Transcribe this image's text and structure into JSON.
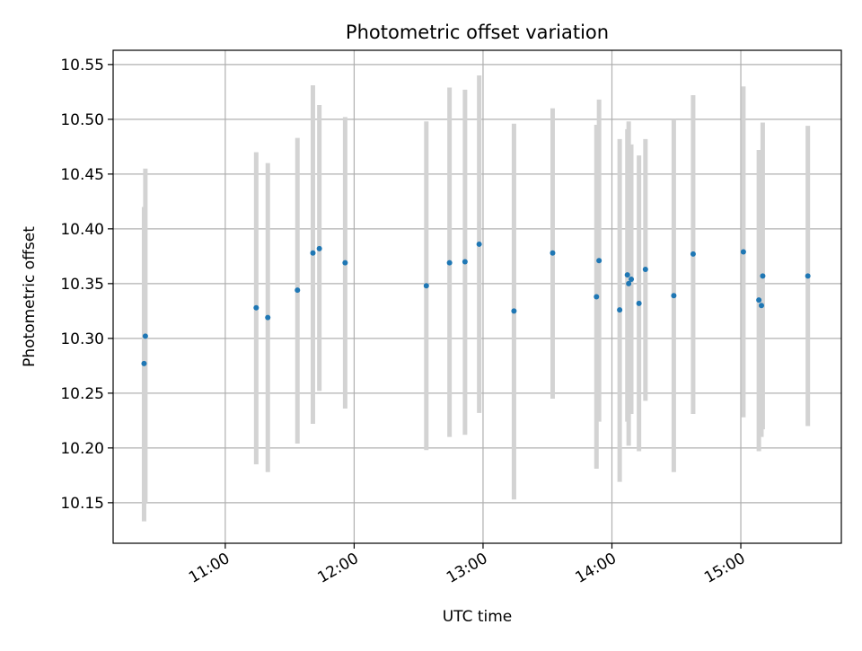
{
  "chart_data": {
    "type": "scatter",
    "title": "Photometric offset variation",
    "xlabel": "UTC time",
    "ylabel": "Photometric offset",
    "x_unit": "hours UTC",
    "xlim": [
      10.13,
      15.78
    ],
    "ylim": [
      10.113,
      10.563
    ],
    "xticks": [
      {
        "value": 11,
        "label": "11:00"
      },
      {
        "value": 12,
        "label": "12:00"
      },
      {
        "value": 13,
        "label": "13:00"
      },
      {
        "value": 14,
        "label": "14:00"
      },
      {
        "value": 15,
        "label": "15:00"
      }
    ],
    "yticks": [
      {
        "value": 10.15,
        "label": "10.15"
      },
      {
        "value": 10.2,
        "label": "10.20"
      },
      {
        "value": 10.25,
        "label": "10.25"
      },
      {
        "value": 10.3,
        "label": "10.30"
      },
      {
        "value": 10.35,
        "label": "10.35"
      },
      {
        "value": 10.4,
        "label": "10.40"
      },
      {
        "value": 10.45,
        "label": "10.45"
      },
      {
        "value": 10.5,
        "label": "10.50"
      },
      {
        "value": 10.55,
        "label": "10.55"
      }
    ],
    "grid": true,
    "colors": {
      "point": "#1f77b4",
      "errorbar": "#d3d3d3",
      "grid": "#b0b0b0",
      "axes": "#000000"
    },
    "series": [
      {
        "points": [
          {
            "x": 10.38,
            "y": 10.302,
            "lo": 10.15,
            "hi": 10.455
          },
          {
            "x": 10.37,
            "y": 10.277,
            "lo": 10.133,
            "hi": 10.42
          },
          {
            "x": 11.24,
            "y": 10.328,
            "lo": 10.185,
            "hi": 10.47
          },
          {
            "x": 11.33,
            "y": 10.319,
            "lo": 10.178,
            "hi": 10.46
          },
          {
            "x": 11.56,
            "y": 10.344,
            "lo": 10.204,
            "hi": 10.483
          },
          {
            "x": 11.68,
            "y": 10.378,
            "lo": 10.222,
            "hi": 10.531
          },
          {
            "x": 11.73,
            "y": 10.382,
            "lo": 10.252,
            "hi": 10.513
          },
          {
            "x": 11.93,
            "y": 10.369,
            "lo": 10.236,
            "hi": 10.502
          },
          {
            "x": 12.56,
            "y": 10.348,
            "lo": 10.198,
            "hi": 10.498
          },
          {
            "x": 12.74,
            "y": 10.369,
            "lo": 10.21,
            "hi": 10.529
          },
          {
            "x": 12.86,
            "y": 10.37,
            "lo": 10.212,
            "hi": 10.527
          },
          {
            "x": 12.97,
            "y": 10.386,
            "lo": 10.232,
            "hi": 10.54
          },
          {
            "x": 13.24,
            "y": 10.325,
            "lo": 10.153,
            "hi": 10.496
          },
          {
            "x": 13.54,
            "y": 10.378,
            "lo": 10.245,
            "hi": 10.51
          },
          {
            "x": 13.88,
            "y": 10.338,
            "lo": 10.181,
            "hi": 10.495
          },
          {
            "x": 13.9,
            "y": 10.371,
            "lo": 10.224,
            "hi": 10.518
          },
          {
            "x": 14.06,
            "y": 10.326,
            "lo": 10.169,
            "hi": 10.482
          },
          {
            "x": 14.12,
            "y": 10.358,
            "lo": 10.224,
            "hi": 10.491
          },
          {
            "x": 14.13,
            "y": 10.35,
            "lo": 10.202,
            "hi": 10.498
          },
          {
            "x": 14.15,
            "y": 10.354,
            "lo": 10.231,
            "hi": 10.477
          },
          {
            "x": 14.21,
            "y": 10.332,
            "lo": 10.197,
            "hi": 10.467
          },
          {
            "x": 14.26,
            "y": 10.363,
            "lo": 10.243,
            "hi": 10.482
          },
          {
            "x": 14.48,
            "y": 10.339,
            "lo": 10.178,
            "hi": 10.5
          },
          {
            "x": 14.63,
            "y": 10.377,
            "lo": 10.231,
            "hi": 10.522
          },
          {
            "x": 15.02,
            "y": 10.379,
            "lo": 10.228,
            "hi": 10.53
          },
          {
            "x": 15.14,
            "y": 10.335,
            "lo": 10.197,
            "hi": 10.472
          },
          {
            "x": 15.16,
            "y": 10.33,
            "lo": 10.21,
            "hi": 10.45
          },
          {
            "x": 15.17,
            "y": 10.357,
            "lo": 10.217,
            "hi": 10.497
          },
          {
            "x": 15.52,
            "y": 10.357,
            "lo": 10.22,
            "hi": 10.494
          }
        ]
      }
    ]
  }
}
